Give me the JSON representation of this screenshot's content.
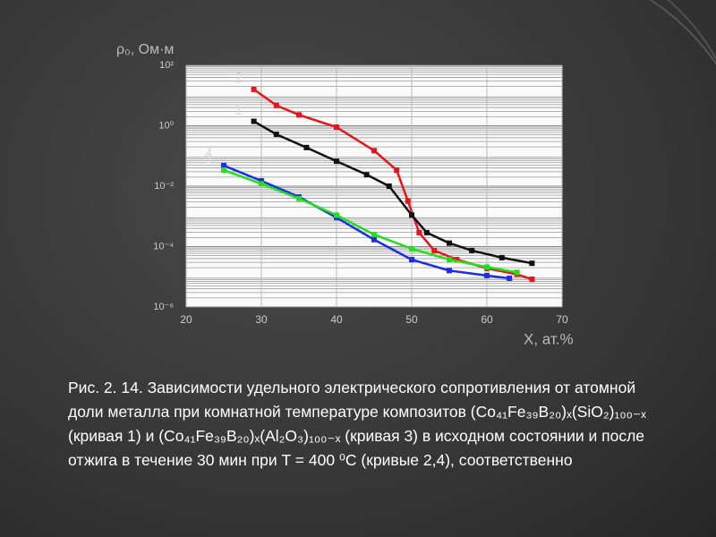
{
  "chart_data": {
    "type": "line",
    "y_label": "ρ₀, Ом·м",
    "x_label": "X, ат.%",
    "log_y": true,
    "grid": true,
    "xlim": [
      20,
      70
    ],
    "xticks": [
      20,
      30,
      40,
      50,
      60,
      70
    ],
    "ylim": [
      1e-06,
      100
    ],
    "yticks": [
      {
        "value": 100,
        "label": "10²"
      },
      {
        "value": 1,
        "label": "10⁰"
      },
      {
        "value": 0.01,
        "label": "10⁻²"
      },
      {
        "value": 0.0001,
        "label": "10⁻⁴"
      },
      {
        "value": 1e-06,
        "label": "10⁻⁶"
      }
    ],
    "series": [
      {
        "name": "2",
        "color": "#e8141c",
        "x": [
          29,
          32,
          35,
          40,
          45,
          48,
          49.5,
          51,
          53,
          56,
          60,
          64,
          66
        ],
        "values": [
          16,
          4.7,
          2.3,
          0.9,
          0.15,
          0.034,
          0.0032,
          0.00029,
          7.4e-05,
          3.7e-05,
          1.9e-05,
          1.2e-05,
          8.3e-06
        ]
      },
      {
        "name": "1",
        "color": "#111111",
        "x": [
          29,
          32,
          36,
          40,
          44,
          47,
          50,
          52,
          55,
          58,
          62,
          66
        ],
        "values": [
          1.4,
          0.52,
          0.19,
          0.067,
          0.024,
          0.01,
          0.0011,
          0.00029,
          0.00013,
          7.4e-05,
          4.3e-05,
          2.8e-05
        ]
      },
      {
        "name": "4",
        "color": "#1a2ee6",
        "x": [
          25,
          30,
          35,
          40,
          45,
          50,
          55,
          60,
          63
        ],
        "values": [
          0.048,
          0.015,
          0.0044,
          0.00091,
          0.00017,
          3.7e-05,
          1.6e-05,
          1.1e-05,
          8.9e-06
        ]
      },
      {
        "name": "3",
        "color": "#22e01e",
        "x": [
          25,
          30,
          35,
          40,
          45,
          50,
          55,
          60,
          64
        ],
        "values": [
          0.034,
          0.012,
          0.0039,
          0.0011,
          0.00025,
          8.5e-05,
          3.7e-05,
          2.1e-05,
          1.4e-05
        ]
      }
    ],
    "caption": "Рис. 2. 14. Зависимости удельного электрического сопротивления от атомной доли металла при комнатной температуре композитов (Co₄₁Fe₃₉B₂₀)ₓ(SiO₂)₁₀₀₋ₓ (кривая 1) и  (Co₄₁Fe₃₉B₂₀)ₓ(Al₂O₃)₁₀₀₋ₓ (кривая 3) в исходном состоянии и после отжига в течение 30 мин при T = 400 ⁰C (кривые 2,4), соответственно"
  }
}
